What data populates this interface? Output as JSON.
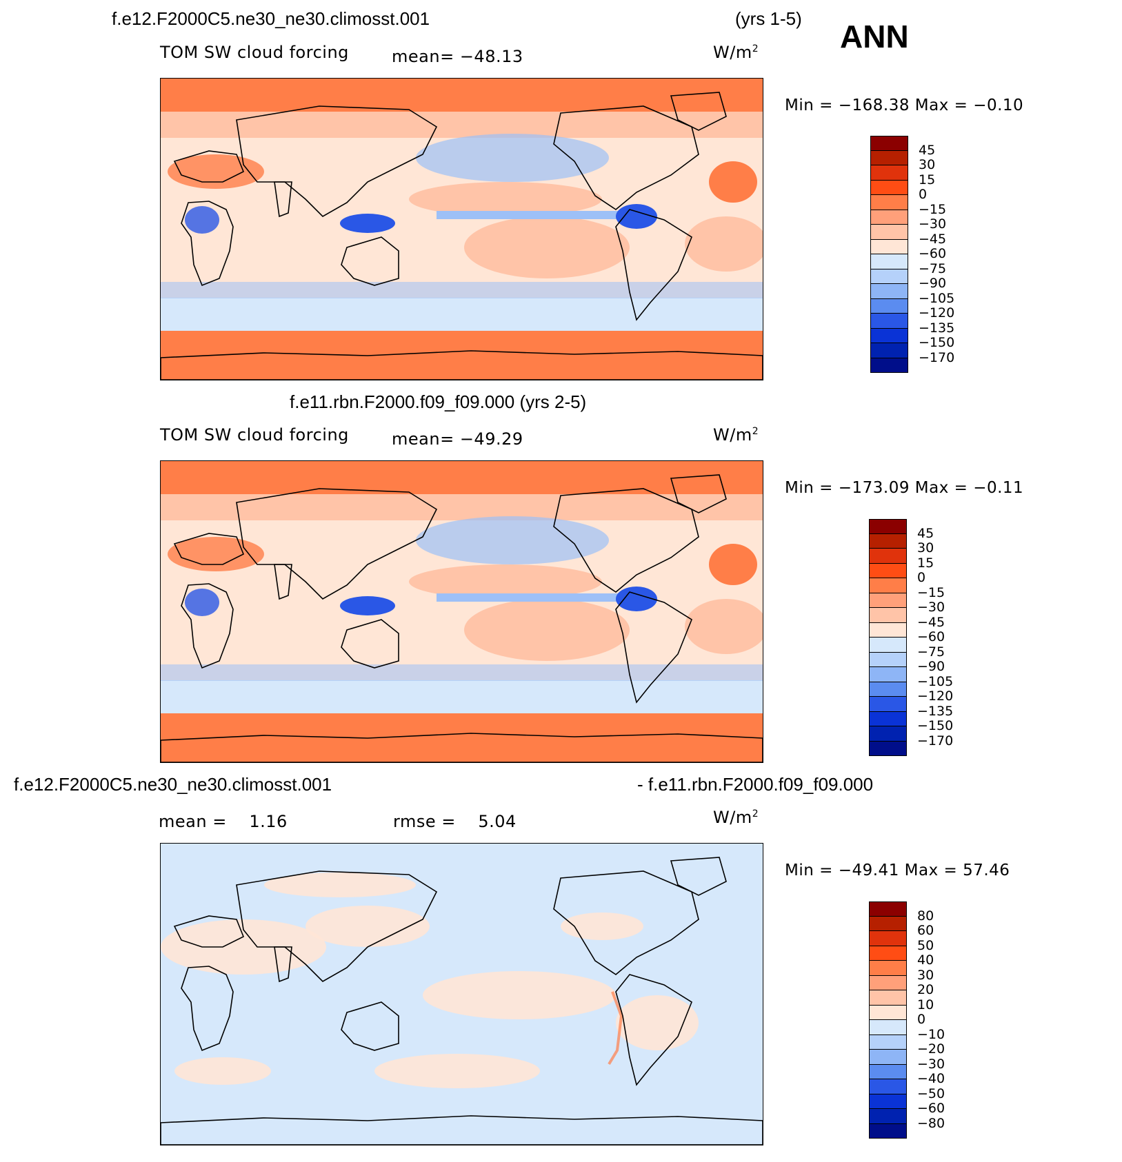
{
  "season": "ANN",
  "units_base": "W/m",
  "units_exp": "2",
  "colors": {
    "ocean_red": "#ff7e48",
    "light_red": "#ffc4a8",
    "pale": "#ffe6d6",
    "pale_blue": "#d6e8fb",
    "blue_mid": "#9dc0f7",
    "blue_deep": "#2a57e6"
  },
  "panels": [
    {
      "case": "f.e12.F2000C5.ne30_ne30.climosst.001",
      "years": "(yrs 1-5)",
      "variable": "TOM SW cloud forcing",
      "mean_label": "mean=",
      "mean_value": "−48.13",
      "minmax": "Min = −168.38 Max =  −0.10",
      "colorbar": [
        "45",
        "30",
        "15",
        "0",
        "−15",
        "−30",
        "−45",
        "−60",
        "−75",
        "−90",
        "−105",
        "−120",
        "−135",
        "−150",
        "−170"
      ]
    },
    {
      "title": "f.e11.rbn.F2000.f09_f09.000 (yrs 2-5)",
      "variable": "TOM SW cloud forcing",
      "mean_label": "mean=",
      "mean_value": "−49.29",
      "minmax": "Min = −173.09 Max =  −0.11",
      "colorbar": [
        "45",
        "30",
        "15",
        "0",
        "−15",
        "−30",
        "−45",
        "−60",
        "−75",
        "−90",
        "−105",
        "−120",
        "−135",
        "−150",
        "−170"
      ]
    },
    {
      "title_left": "f.e12.F2000C5.ne30_ne30.climosst.001",
      "title_right": "- f.e11.rbn.F2000.f09_f09.000",
      "mean_label": "mean =",
      "mean_value": "1.16",
      "rmse_label": "rmse =",
      "rmse_value": "5.04",
      "minmax": "Min = −49.41 Max =  57.46",
      "colorbar": [
        "80",
        "60",
        "50",
        "40",
        "30",
        "20",
        "10",
        "0",
        "−10",
        "−20",
        "−30",
        "−40",
        "−50",
        "−60",
        "−80"
      ]
    }
  ],
  "colorbar_colors": [
    "#8b0000",
    "#b62000",
    "#e0330c",
    "#ff4d14",
    "#ff7e48",
    "#ffa07a",
    "#ffc4a8",
    "#ffe6d6",
    "#d6e8fb",
    "#b5d1fa",
    "#8eb5f6",
    "#5b8cf0",
    "#2a57e6",
    "#0a33d6",
    "#0022b0",
    "#000e8a"
  ]
}
